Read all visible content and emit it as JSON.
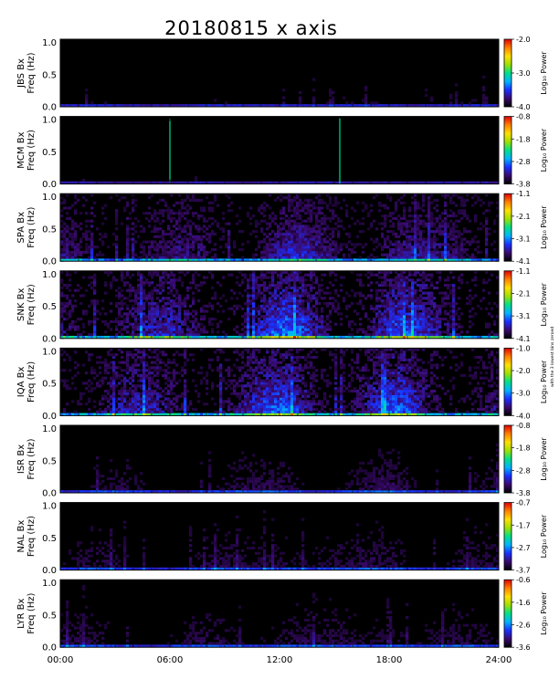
{
  "title": "20180815 x axis",
  "side_note": "with the 3 lowest bins zeroed",
  "colorbar_label": "Log₁₀ Power",
  "chart_data": {
    "type": "heatmap",
    "title": "20180815 x axis",
    "x_ticks": [
      "00:00",
      "06:00",
      "12:00",
      "18:00",
      "24:00"
    ],
    "x_range_hours": [
      0,
      24
    ],
    "y_ticks": [
      "0.0",
      "0.5",
      "1.0"
    ],
    "y_range_hz": [
      0,
      1.05
    ],
    "colorscale": [
      "#000000",
      "#3a0a6e",
      "#1a30ff",
      "#00b4ff",
      "#00e08a",
      "#9fe000",
      "#ffe000",
      "#ff8000",
      "#e00000"
    ],
    "panels": [
      {
        "station": "JBS Bx",
        "ylabel": "Freq (Hz)",
        "cbar_ticks": [
          "-2.0",
          "-3.0",
          "-4.0"
        ],
        "cbar_range": [
          -4.0,
          -2.0
        ],
        "activity": 0.18
      },
      {
        "station": "MCM Bx",
        "ylabel": "Freq (Hz)",
        "cbar_ticks": [
          "-0.8",
          "-1.8",
          "-2.8",
          "-3.8"
        ],
        "cbar_range": [
          -3.8,
          -0.8
        ],
        "activity": 0.12
      },
      {
        "station": "SPA Bx",
        "ylabel": "Freq (Hz)",
        "cbar_ticks": [
          "-1.1",
          "-2.1",
          "-3.1",
          "-4.1"
        ],
        "cbar_range": [
          -4.1,
          -1.1
        ],
        "activity": 0.55
      },
      {
        "station": "SNK Bx",
        "ylabel": "Freq (Hz)",
        "cbar_ticks": [
          "-1.1",
          "-2.1",
          "-3.1",
          "-4.1"
        ],
        "cbar_range": [
          -4.1,
          -1.1
        ],
        "activity": 0.75
      },
      {
        "station": "IQA Bx",
        "ylabel": "Freq (Hz)",
        "cbar_ticks": [
          "-1.0",
          "-2.0",
          "-3.0",
          "-4.0"
        ],
        "cbar_range": [
          -4.0,
          -1.0
        ],
        "activity": 0.72
      },
      {
        "station": "ISR Bx",
        "ylabel": "Freq (Hz)",
        "cbar_ticks": [
          "-0.8",
          "-1.8",
          "-2.8",
          "-3.8"
        ],
        "cbar_range": [
          -3.8,
          -0.8
        ],
        "activity": 0.28
      },
      {
        "station": "NAL Bx",
        "ylabel": "Freq (Hz)",
        "cbar_ticks": [
          "-0.7",
          "-1.7",
          "-2.7",
          "-3.7"
        ],
        "cbar_range": [
          -3.7,
          -0.7
        ],
        "activity": 0.3
      },
      {
        "station": "LYR Bx",
        "ylabel": "Freq (Hz)",
        "cbar_ticks": [
          "-0.6",
          "-1.6",
          "-2.6",
          "-3.6"
        ],
        "cbar_range": [
          -3.6,
          -0.6
        ],
        "activity": 0.3
      }
    ]
  }
}
